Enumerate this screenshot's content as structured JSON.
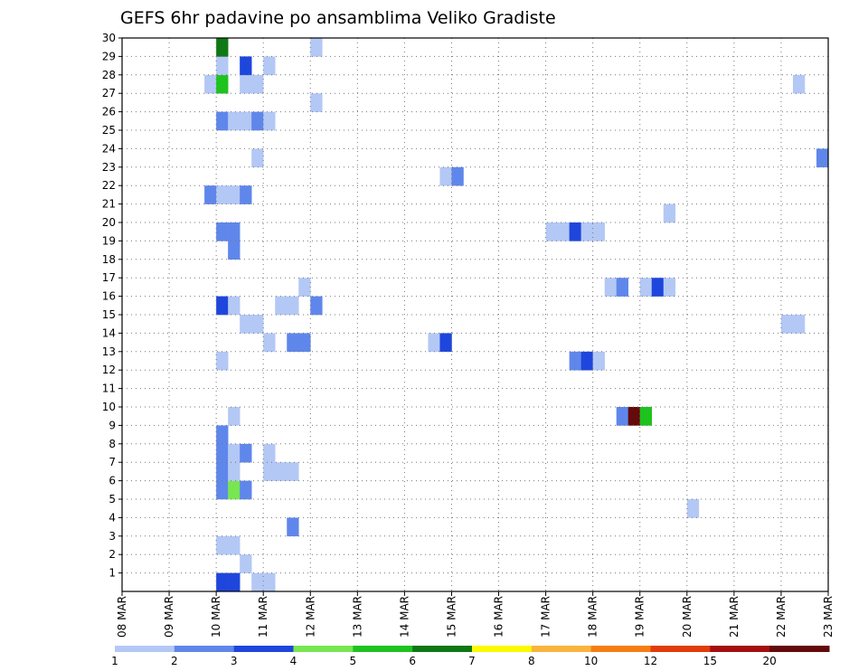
{
  "chart_data": {
    "type": "heatmap",
    "title": "GEFS 6hr padavine po ansamblima Veliko Gradiste",
    "xlabel": "",
    "ylabel": "",
    "x_ticks": [
      "08 MAR",
      "09 MAR",
      "10 MAR",
      "11 MAR",
      "12 MAR",
      "13 MAR",
      "14 MAR",
      "15 MAR",
      "16 MAR",
      "17 MAR",
      "18 MAR",
      "19 MAR",
      "20 MAR",
      "21 MAR",
      "22 MAR",
      "23 MAR"
    ],
    "y_ticks": [
      "1",
      "2",
      "3",
      "4",
      "5",
      "6",
      "7",
      "8",
      "9",
      "10",
      "11",
      "12",
      "13",
      "14",
      "15",
      "16",
      "17",
      "18",
      "19",
      "20",
      "21",
      "22",
      "23",
      "24",
      "25",
      "26",
      "27",
      "28",
      "29",
      "30"
    ],
    "xlim_days": [
      8,
      23
    ],
    "ylim": [
      0,
      30
    ],
    "grid": true,
    "colorbar": {
      "placement": "bottom",
      "labels": [
        "1",
        "2",
        "3",
        "4",
        "5",
        "6",
        "7",
        "8",
        "10",
        "12",
        "15",
        "20"
      ],
      "colors": [
        "#b4c8f5",
        "#5f87eb",
        "#1e46dc",
        "#78e650",
        "#1ec31e",
        "#0f7814",
        "#fafa00",
        "#fab43c",
        "#f57d14",
        "#e13c0a",
        "#a50f0f",
        "#640a0a"
      ]
    },
    "cells_description": "x = day of March (start of 6h step), y = ensemble member, v = precipitation (mm)",
    "cells": [
      {
        "x": 10.0,
        "y": 0,
        "v": 3
      },
      {
        "x": 10.25,
        "y": 0,
        "v": 3
      },
      {
        "x": 10.75,
        "y": 0,
        "v": 1
      },
      {
        "x": 11.0,
        "y": 0,
        "v": 1
      },
      {
        "x": 10.5,
        "y": 1,
        "v": 1
      },
      {
        "x": 10.0,
        "y": 2,
        "v": 1
      },
      {
        "x": 10.25,
        "y": 2,
        "v": 1
      },
      {
        "x": 11.5,
        "y": 3,
        "v": 2
      },
      {
        "x": 20.0,
        "y": 4,
        "v": 1
      },
      {
        "x": 10.0,
        "y": 5,
        "v": 2
      },
      {
        "x": 10.25,
        "y": 5,
        "v": 4
      },
      {
        "x": 10.5,
        "y": 5,
        "v": 2
      },
      {
        "x": 10.0,
        "y": 6,
        "v": 2
      },
      {
        "x": 10.25,
        "y": 6,
        "v": 1
      },
      {
        "x": 11.0,
        "y": 6,
        "v": 1
      },
      {
        "x": 11.25,
        "y": 6,
        "v": 1
      },
      {
        "x": 11.5,
        "y": 6,
        "v": 1
      },
      {
        "x": 10.0,
        "y": 7,
        "v": 2
      },
      {
        "x": 10.25,
        "y": 7,
        "v": 1
      },
      {
        "x": 10.5,
        "y": 7,
        "v": 2
      },
      {
        "x": 11.0,
        "y": 7,
        "v": 1
      },
      {
        "x": 10.0,
        "y": 8,
        "v": 2
      },
      {
        "x": 10.25,
        "y": 9,
        "v": 1
      },
      {
        "x": 18.5,
        "y": 9,
        "v": 2
      },
      {
        "x": 18.75,
        "y": 9,
        "v": 20
      },
      {
        "x": 19.0,
        "y": 9,
        "v": 5
      },
      {
        "x": 10.0,
        "y": 12,
        "v": 1
      },
      {
        "x": 17.5,
        "y": 12,
        "v": 2
      },
      {
        "x": 17.75,
        "y": 12,
        "v": 3
      },
      {
        "x": 18.0,
        "y": 12,
        "v": 1
      },
      {
        "x": 11.0,
        "y": 13,
        "v": 1
      },
      {
        "x": 11.5,
        "y": 13,
        "v": 2
      },
      {
        "x": 11.75,
        "y": 13,
        "v": 2
      },
      {
        "x": 14.5,
        "y": 13,
        "v": 1
      },
      {
        "x": 14.75,
        "y": 13,
        "v": 3
      },
      {
        "x": 10.5,
        "y": 14,
        "v": 1
      },
      {
        "x": 10.75,
        "y": 14,
        "v": 1
      },
      {
        "x": 22.0,
        "y": 14,
        "v": 1
      },
      {
        "x": 22.25,
        "y": 14,
        "v": 1
      },
      {
        "x": 10.0,
        "y": 15,
        "v": 3
      },
      {
        "x": 10.25,
        "y": 15,
        "v": 1
      },
      {
        "x": 11.25,
        "y": 15,
        "v": 1
      },
      {
        "x": 11.5,
        "y": 15,
        "v": 1
      },
      {
        "x": 12.0,
        "y": 15,
        "v": 2
      },
      {
        "x": 11.75,
        "y": 16,
        "v": 1
      },
      {
        "x": 18.25,
        "y": 16,
        "v": 1
      },
      {
        "x": 18.5,
        "y": 16,
        "v": 2
      },
      {
        "x": 19.0,
        "y": 16,
        "v": 1
      },
      {
        "x": 19.25,
        "y": 16,
        "v": 3
      },
      {
        "x": 19.5,
        "y": 16,
        "v": 1
      },
      {
        "x": 10.25,
        "y": 18,
        "v": 2
      },
      {
        "x": 10.0,
        "y": 19,
        "v": 2
      },
      {
        "x": 10.25,
        "y": 19,
        "v": 2
      },
      {
        "x": 17.0,
        "y": 19,
        "v": 1
      },
      {
        "x": 17.25,
        "y": 19,
        "v": 1
      },
      {
        "x": 17.5,
        "y": 19,
        "v": 3
      },
      {
        "x": 17.75,
        "y": 19,
        "v": 1
      },
      {
        "x": 18.0,
        "y": 19,
        "v": 1
      },
      {
        "x": 19.5,
        "y": 20,
        "v": 1
      },
      {
        "x": 9.75,
        "y": 21,
        "v": 2
      },
      {
        "x": 10.0,
        "y": 21,
        "v": 1
      },
      {
        "x": 10.25,
        "y": 21,
        "v": 1
      },
      {
        "x": 10.5,
        "y": 21,
        "v": 2
      },
      {
        "x": 14.75,
        "y": 22,
        "v": 1
      },
      {
        "x": 15.0,
        "y": 22,
        "v": 2
      },
      {
        "x": 10.75,
        "y": 23,
        "v": 1
      },
      {
        "x": 22.75,
        "y": 23,
        "v": 2
      },
      {
        "x": 10.0,
        "y": 25,
        "v": 2
      },
      {
        "x": 10.25,
        "y": 25,
        "v": 1
      },
      {
        "x": 10.5,
        "y": 25,
        "v": 1
      },
      {
        "x": 10.75,
        "y": 25,
        "v": 2
      },
      {
        "x": 11.0,
        "y": 25,
        "v": 1
      },
      {
        "x": 12.0,
        "y": 26,
        "v": 1
      },
      {
        "x": 9.75,
        "y": 27,
        "v": 1
      },
      {
        "x": 10.0,
        "y": 27,
        "v": 5
      },
      {
        "x": 10.5,
        "y": 27,
        "v": 1
      },
      {
        "x": 10.75,
        "y": 27,
        "v": 1
      },
      {
        "x": 22.25,
        "y": 27,
        "v": 1
      },
      {
        "x": 10.0,
        "y": 28,
        "v": 1
      },
      {
        "x": 10.5,
        "y": 28,
        "v": 3
      },
      {
        "x": 11.0,
        "y": 28,
        "v": 1
      },
      {
        "x": 10.0,
        "y": 29,
        "v": 6
      },
      {
        "x": 12.0,
        "y": 29,
        "v": 1
      }
    ]
  }
}
